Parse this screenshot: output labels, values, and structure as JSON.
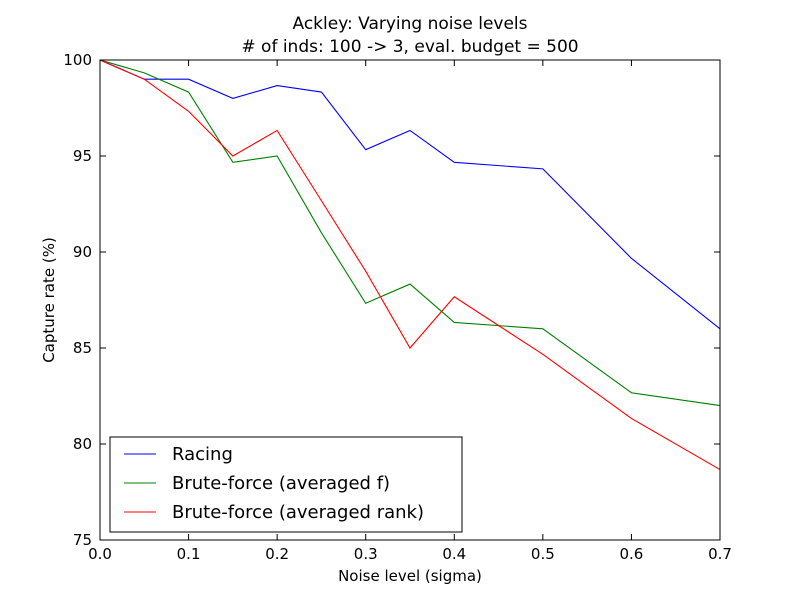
{
  "chart_data": {
    "type": "line",
    "title": "Ackley: Varying noise levels",
    "subtitle": "# of inds: 100 -> 3, eval. budget = 500",
    "xlabel": "Noise level (sigma)",
    "ylabel": "Capture rate (%)",
    "xlim": [
      0.0,
      0.7
    ],
    "ylim": [
      75,
      100
    ],
    "xticks": [
      0.0,
      0.1,
      0.2,
      0.3,
      0.4,
      0.5,
      0.6,
      0.7
    ],
    "xtick_labels": [
      "0.0",
      "0.1",
      "0.2",
      "0.3",
      "0.4",
      "0.5",
      "0.6",
      "0.7"
    ],
    "yticks": [
      75,
      80,
      85,
      90,
      95,
      100
    ],
    "ytick_labels": [
      "75",
      "80",
      "85",
      "90",
      "95",
      "100"
    ],
    "grid": false,
    "legend_position": "lower-left",
    "series": [
      {
        "name": "Racing",
        "color": "#0000ff",
        "x": [
          0.0,
          0.05,
          0.1,
          0.15,
          0.2,
          0.25,
          0.3,
          0.35,
          0.4,
          0.5,
          0.6,
          0.7
        ],
        "y": [
          100.0,
          99.0,
          99.0,
          98.0,
          98.67,
          98.33,
          95.33,
          96.33,
          94.67,
          94.33,
          89.67,
          86.0
        ]
      },
      {
        "name": "Brute-force (averaged f)",
        "color": "#008000",
        "x": [
          0.0,
          0.05,
          0.1,
          0.15,
          0.2,
          0.25,
          0.3,
          0.35,
          0.4,
          0.5,
          0.6,
          0.7
        ],
        "y": [
          100.0,
          99.33,
          98.33,
          94.67,
          95.0,
          91.0,
          87.33,
          88.33,
          86.33,
          86.0,
          82.67,
          82.0
        ]
      },
      {
        "name": "Brute-force (averaged rank)",
        "color": "#ff0000",
        "x": [
          0.0,
          0.05,
          0.1,
          0.15,
          0.2,
          0.25,
          0.3,
          0.35,
          0.4,
          0.5,
          0.6,
          0.7
        ],
        "y": [
          100.0,
          99.0,
          97.33,
          95.0,
          96.33,
          92.67,
          89.0,
          85.0,
          87.67,
          84.67,
          81.33,
          78.67
        ]
      }
    ]
  }
}
